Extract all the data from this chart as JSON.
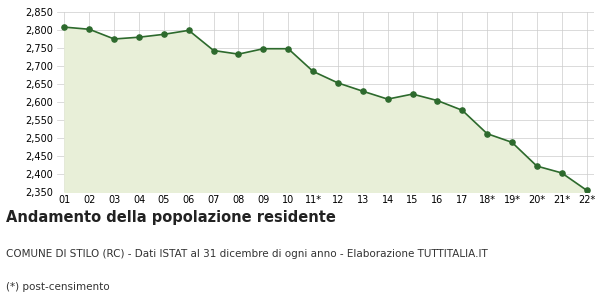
{
  "x_labels": [
    "01",
    "02",
    "03",
    "04",
    "05",
    "06",
    "07",
    "08",
    "09",
    "10",
    "11*",
    "12",
    "13",
    "14",
    "15",
    "16",
    "17",
    "18*",
    "19*",
    "20*",
    "21*",
    "22*"
  ],
  "y_values": [
    2808,
    2802,
    2775,
    2780,
    2788,
    2799,
    2743,
    2733,
    2748,
    2748,
    2685,
    2653,
    2630,
    2608,
    2622,
    2604,
    2577,
    2512,
    2488,
    2422,
    2403,
    2355
  ],
  "ylim_min": 2350,
  "ylim_max": 2850,
  "ytick_step": 50,
  "line_color": "#2d6a2d",
  "fill_color": "#e8efd8",
  "marker_color": "#2d6a2d",
  "bg_color": "#ffffff",
  "grid_color": "#cccccc",
  "title": "Andamento della popolazione residente",
  "subtitle": "COMUNE DI STILO (RC) - Dati ISTAT al 31 dicembre di ogni anno - Elaborazione TUTTITALIA.IT",
  "footnote": "(*) post-censimento",
  "title_fontsize": 10.5,
  "subtitle_fontsize": 7.5,
  "footnote_fontsize": 7.5
}
